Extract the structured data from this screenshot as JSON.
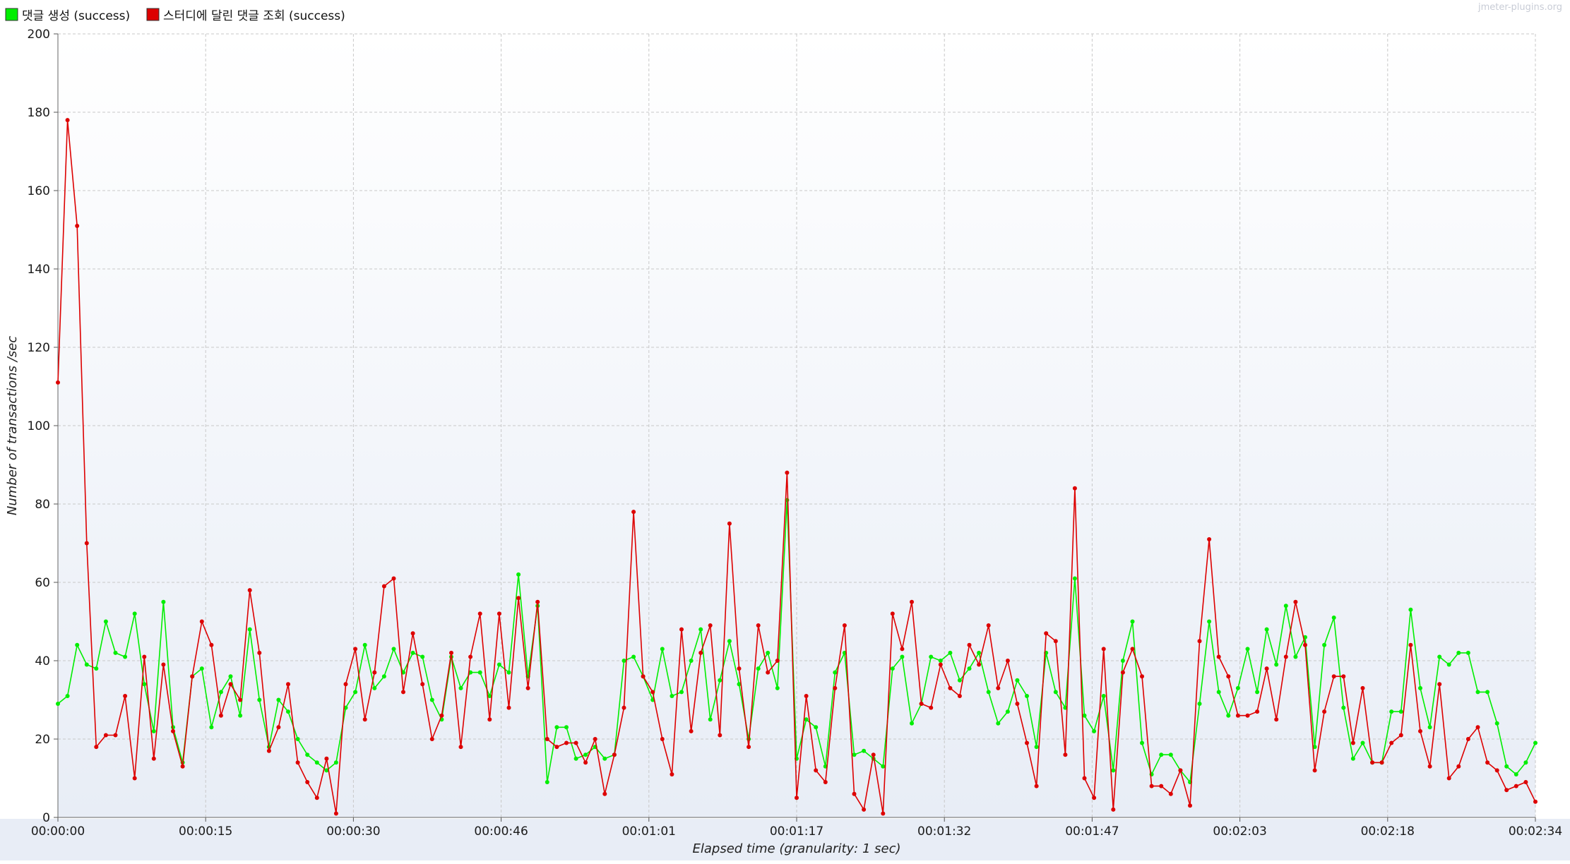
{
  "watermark": "jmeter-plugins.org",
  "colors": {
    "series_1": "#00ee00",
    "series_2": "#dd0000",
    "grid": "#c8c8c8",
    "plot_background_top": "#ffffff",
    "plot_background_bottom": "#e8edf6"
  },
  "chart_data": {
    "type": "line",
    "title": "",
    "xlabel": "Elapsed time (granularity: 1 sec)",
    "ylabel": "Number of transactions /sec",
    "xlim": [
      0,
      154
    ],
    "ylim": [
      0,
      200
    ],
    "x_ticks": [
      {
        "value": 0,
        "label": "00:00:00"
      },
      {
        "value": 15.4,
        "label": "00:00:15"
      },
      {
        "value": 30.8,
        "label": "00:00:30"
      },
      {
        "value": 46.2,
        "label": "00:00:46"
      },
      {
        "value": 61.6,
        "label": "00:01:01"
      },
      {
        "value": 77,
        "label": "00:01:17"
      },
      {
        "value": 92.4,
        "label": "00:01:32"
      },
      {
        "value": 107.8,
        "label": "00:01:47"
      },
      {
        "value": 123.2,
        "label": "00:02:03"
      },
      {
        "value": 138.6,
        "label": "00:02:18"
      },
      {
        "value": 154,
        "label": "00:02:34"
      }
    ],
    "y_ticks": [
      0,
      20,
      40,
      60,
      80,
      100,
      120,
      140,
      160,
      180,
      200
    ],
    "grid": true,
    "legend_position": "top-left",
    "series": [
      {
        "name": "댓글 생성 (success)",
        "color": "#00ee00",
        "values": [
          29,
          31,
          44,
          39,
          38,
          50,
          42,
          41,
          52,
          34,
          22,
          55,
          23,
          14,
          36,
          38,
          23,
          32,
          36,
          26,
          48,
          30,
          18,
          30,
          27,
          20,
          16,
          14,
          12,
          14,
          28,
          32,
          44,
          33,
          36,
          43,
          37,
          42,
          41,
          30,
          25,
          41,
          33,
          37,
          37,
          31,
          39,
          37,
          62,
          36,
          54,
          9,
          23,
          23,
          15,
          16,
          18,
          15,
          16,
          40,
          41,
          36,
          30,
          43,
          31,
          32,
          40,
          48,
          25,
          35,
          45,
          34,
          20,
          38,
          42,
          33,
          81,
          15,
          25,
          23,
          13,
          37,
          42,
          16,
          17,
          15,
          13,
          38,
          41,
          24,
          29,
          41,
          40,
          42,
          35,
          38,
          42,
          32,
          24,
          27,
          35,
          31,
          18,
          42,
          32,
          28,
          61,
          26,
          22,
          31,
          12,
          40,
          50,
          19,
          11,
          16,
          16,
          12,
          9,
          29,
          50,
          32,
          26,
          33,
          43,
          32,
          48,
          39,
          54,
          41,
          46,
          18,
          44,
          51,
          28,
          15,
          19,
          14,
          14,
          27,
          27,
          53,
          33,
          23,
          41,
          39,
          42,
          42,
          32,
          32,
          24,
          13,
          11,
          14,
          19
        ]
      },
      {
        "name": "스터디에 달린 댓글 조회 (success)",
        "color": "#dd0000",
        "values": [
          111,
          178,
          151,
          70,
          18,
          21,
          21,
          31,
          10,
          41,
          15,
          39,
          22,
          13,
          36,
          50,
          44,
          26,
          34,
          30,
          58,
          42,
          17,
          23,
          34,
          14,
          9,
          5,
          15,
          1,
          34,
          43,
          25,
          37,
          59,
          61,
          32,
          47,
          34,
          20,
          26,
          42,
          18,
          41,
          52,
          25,
          52,
          28,
          56,
          33,
          55,
          20,
          18,
          19,
          19,
          14,
          20,
          6,
          16,
          28,
          78,
          36,
          32,
          20,
          11,
          48,
          22,
          42,
          49,
          21,
          75,
          38,
          18,
          49,
          37,
          40,
          88,
          5,
          31,
          12,
          9,
          33,
          49,
          6,
          2,
          16,
          1,
          52,
          43,
          55,
          29,
          28,
          39,
          33,
          31,
          44,
          39,
          49,
          33,
          40,
          29,
          19,
          8,
          47,
          45,
          16,
          84,
          10,
          5,
          43,
          2,
          37,
          43,
          36,
          8,
          8,
          6,
          12,
          3,
          45,
          71,
          41,
          36,
          26,
          26,
          27,
          38,
          25,
          41,
          55,
          44,
          12,
          27,
          36,
          36,
          19,
          33,
          14,
          14,
          19,
          21,
          44,
          22,
          13,
          34,
          10,
          13,
          20,
          23,
          14,
          12,
          7,
          8,
          9,
          4
        ]
      }
    ]
  }
}
